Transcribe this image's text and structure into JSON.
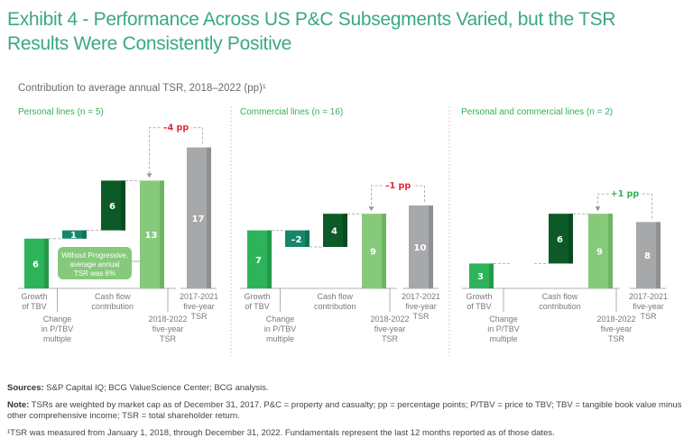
{
  "title": "Exhibit 4 - Performance Across US P&C Subsegments Varied, but the TSR Results Were Consistently Positive",
  "title_line1": "Exhibit 4 - Performance Across US P&C Subsegments Varied, but the TSR",
  "title_line2": "Results Were Consistently Positive",
  "subtitle": "Contribution to average annual TSR, 2018–2022 (pp)¹",
  "colors": {
    "growth_tbv": "#2db45a",
    "change_ptbv": "#17866a",
    "cash_flow": "#0b5a27",
    "tsr_2018_2022": "#86c97b",
    "tsr_2017_2021": "#a7a8aa",
    "negative_delta": "#e0283a",
    "positive_delta": "#32b05a",
    "title": "#3aa883"
  },
  "chart_data": [
    {
      "type": "bar",
      "subtype": "waterfall",
      "title": "Personal lines (n = 5)",
      "categories": [
        "Growth of TBV",
        "Change in P/TBV multiple",
        "Cash flow contribution",
        "2018-2022 five-year TSR",
        "2017-2021 five-year TSR"
      ],
      "values": [
        6,
        1,
        6,
        13,
        17
      ],
      "delta_label": "–4 pp",
      "delta_sign": "negative",
      "callout": [
        "Without Progressive,",
        "average annual",
        "TSR was 6%"
      ],
      "ylim": [
        0,
        17
      ]
    },
    {
      "type": "bar",
      "subtype": "waterfall",
      "title": "Commercial lines (n = 16)",
      "categories": [
        "Growth of TBV",
        "Change in P/TBV multiple",
        "Cash flow contribution",
        "2018-2022 five-year TSR",
        "2017-2021 five-year TSR"
      ],
      "values": [
        7,
        -2,
        4,
        9,
        10
      ],
      "delta_label": "–1 pp",
      "delta_sign": "negative",
      "ylim": [
        0,
        17
      ]
    },
    {
      "type": "bar",
      "subtype": "waterfall",
      "title": "Personal and commercial lines (n = 2)",
      "categories": [
        "Growth of TBV",
        "Change in P/TBV multiple",
        "Cash flow contribution",
        "2018-2022 five-year TSR",
        "2017-2021 five-year TSR"
      ],
      "values": [
        3,
        0,
        6,
        9,
        8
      ],
      "delta_label": "+1 pp",
      "delta_sign": "positive",
      "ylim": [
        0,
        17
      ]
    }
  ],
  "axis_labels": {
    "growth": [
      "Growth",
      "of TBV"
    ],
    "change": [
      "Change",
      "in P/TBV",
      "multiple"
    ],
    "cashflow": [
      "Cash flow",
      "contribution"
    ],
    "tsr_new": [
      "2018-2022",
      "five-year",
      "TSR"
    ],
    "tsr_old": [
      "2017-2021",
      "five-year",
      "TSR"
    ]
  },
  "footer": {
    "sources_label": "Sources:",
    "sources_text": " S&P Capital IQ; BCG ValueScience Center; BCG analysis.",
    "note_label": "Note:",
    "note_text": " TSRs are weighted by market cap as of December 31, 2017. P&C = property and casualty; pp = percentage points; P/TBV = price to TBV; TBV = tangible book value minus other comprehensive income; TSR = total shareholder return.",
    "footnote": "¹TSR was measured from January 1, 2018, through December 31, 2022. Fundamentals represent the last 12 months reported as of those dates."
  }
}
